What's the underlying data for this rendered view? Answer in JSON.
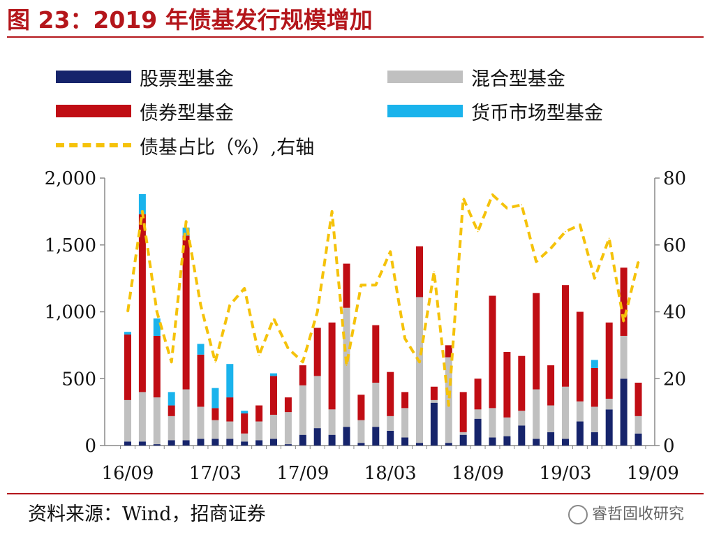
{
  "title": "图 23：2019 年债基发行规模增加",
  "legend": {
    "stock": "股票型基金",
    "mixed": "混合型基金",
    "bond": "债券型基金",
    "money": "货币市场型基金",
    "ratio": "债基占比（%）,右轴"
  },
  "source": "资料来源：Wind，招商证券",
  "brand": "睿哲固收研究",
  "colors": {
    "stock": "#16246b",
    "mixed": "#c0c0c0",
    "bond": "#c00d14",
    "money": "#1ab3ec",
    "ratio": "#f5c20a",
    "title": "#b4161b"
  },
  "chart_data": {
    "type": "bar",
    "stacked": true,
    "categories": [
      "16/09",
      "16/10",
      "16/11",
      "16/12",
      "17/01",
      "17/02",
      "17/03",
      "17/04",
      "17/05",
      "17/06",
      "17/07",
      "17/08",
      "17/09",
      "17/10",
      "17/11",
      "17/12",
      "18/01",
      "18/02",
      "18/03",
      "18/04",
      "18/05",
      "18/06",
      "18/07",
      "18/08",
      "18/09",
      "18/10",
      "18/11",
      "18/12",
      "19/01",
      "19/02",
      "19/03",
      "19/04",
      "19/05",
      "19/06",
      "19/07",
      "19/08",
      "19/09"
    ],
    "x_tick_labels": [
      "16/09",
      "17/03",
      "17/09",
      "18/03",
      "18/09",
      "19/03",
      "19/09"
    ],
    "y_left": {
      "min": 0,
      "max": 2000,
      "ticks": [
        "0",
        "500",
        "1,000",
        "1,500",
        "2,000"
      ]
    },
    "y_right": {
      "min": 0,
      "max": 80,
      "ticks": [
        "0",
        "20",
        "40",
        "60",
        "80"
      ]
    },
    "series": [
      {
        "name": "股票型基金",
        "key": "stock",
        "values": [
          30,
          30,
          10,
          40,
          40,
          50,
          50,
          50,
          30,
          40,
          50,
          10,
          80,
          130,
          80,
          140,
          20,
          140,
          110,
          60,
          20,
          320,
          20,
          80,
          200,
          60,
          70,
          150,
          50,
          100,
          50,
          180,
          100,
          270,
          500,
          90,
          0
        ]
      },
      {
        "name": "混合型基金",
        "key": "mixed",
        "values": [
          310,
          370,
          350,
          180,
          380,
          240,
          140,
          130,
          60,
          140,
          180,
          240,
          370,
          390,
          190,
          890,
          170,
          330,
          110,
          220,
          1090,
          20,
          640,
          20,
          70,
          220,
          140,
          110,
          370,
          200,
          390,
          150,
          190,
          80,
          320,
          130,
          0
        ]
      },
      {
        "name": "债券型基金",
        "key": "bond",
        "values": [
          490,
          1330,
          460,
          80,
          1150,
          390,
          90,
          180,
          150,
          120,
          290,
          110,
          150,
          360,
          650,
          330,
          190,
          430,
          330,
          120,
          380,
          100,
          90,
          300,
          230,
          840,
          490,
          410,
          720,
          300,
          760,
          670,
          290,
          570,
          510,
          250,
          0
        ]
      },
      {
        "name": "货币市场型基金",
        "key": "money",
        "values": [
          20,
          150,
          130,
          100,
          60,
          80,
          150,
          250,
          20,
          0,
          20,
          0,
          0,
          0,
          0,
          0,
          0,
          0,
          0,
          0,
          0,
          0,
          0,
          0,
          0,
          0,
          0,
          0,
          0,
          0,
          0,
          0,
          60,
          0,
          0,
          0,
          0
        ]
      },
      {
        "name": "债基占比（%）,右轴",
        "key": "ratio",
        "axis": "right",
        "type": "line",
        "values": [
          40,
          70,
          40,
          25,
          67,
          42,
          25,
          42,
          47,
          27,
          38,
          29,
          25,
          40,
          70,
          24,
          48,
          48,
          58,
          32,
          25,
          52,
          12,
          74,
          64,
          75,
          71,
          72,
          55,
          59,
          64,
          66,
          50,
          62,
          37,
          55,
          null
        ]
      }
    ]
  }
}
